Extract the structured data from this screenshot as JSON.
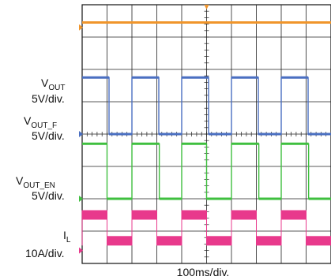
{
  "chart_data": {
    "type": "line",
    "time_per_div": "100ms/div.",
    "x_divisions": 10,
    "y_divisions": 8,
    "grid": true,
    "channels": [
      {
        "name_main": "V",
        "name_sub": "OUT",
        "scale": "5V/div.",
        "color": "#f0952b",
        "kind": "flat",
        "level_div": 0.55
      },
      {
        "name_main": "V",
        "name_sub": "OUT",
        "scale": "5V/div.",
        "color": "#4a6fc1",
        "kind": "pulse",
        "low_div": 4.0,
        "high_div": 2.25,
        "high_intervals": [
          [
            0.0,
            1.08
          ],
          [
            2.0,
            3.08
          ],
          [
            4.0,
            5.08
          ],
          [
            6.0,
            7.08
          ],
          [
            8.0,
            9.08
          ]
        ]
      },
      {
        "name_main": "V",
        "name_sub": "OUT_F",
        "scale": "5V/div.",
        "color": "#4a6fc1",
        "kind": "label-only"
      },
      {
        "name_main": "V",
        "name_sub": "OUT_EN",
        "scale": "5V/div.",
        "color": "#3fbf3f",
        "kind": "pulse",
        "low_div": 6.0,
        "high_div": 4.3,
        "high_intervals": [
          [
            0.0,
            1.0
          ],
          [
            2.0,
            3.1
          ],
          [
            4.0,
            5.0
          ],
          [
            6.0,
            7.1
          ],
          [
            8.0,
            9.1
          ]
        ]
      },
      {
        "name_main": "I",
        "name_sub": "L",
        "scale": "10A/div.",
        "color": "#e8398c",
        "kind": "pulse",
        "low_div": 7.3,
        "high_div": 6.5,
        "high_intervals": [
          [
            0.0,
            1.0
          ],
          [
            2.0,
            3.0
          ],
          [
            4.0,
            5.0
          ],
          [
            6.0,
            7.0
          ],
          [
            8.0,
            9.0
          ]
        ]
      }
    ]
  }
}
